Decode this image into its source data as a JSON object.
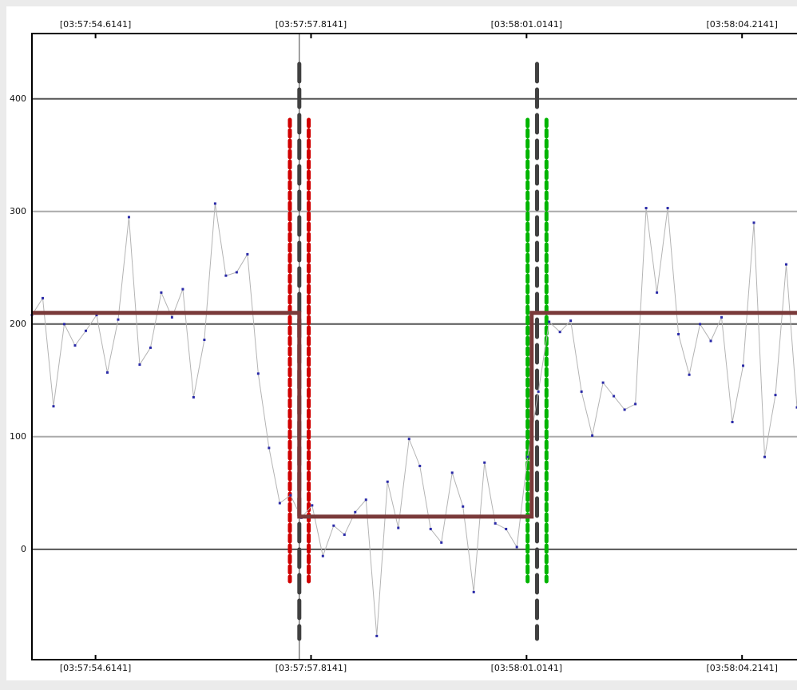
{
  "chart_data": {
    "type": "line",
    "x": [
      14273.67,
      14273.83,
      14273.99,
      14274.15,
      14274.31,
      14274.47,
      14274.63,
      14274.79,
      14274.95,
      14275.11,
      14275.27,
      14275.43,
      14275.59,
      14275.75,
      14275.91,
      14276.07,
      14276.23,
      14276.39,
      14276.55,
      14276.71,
      14276.87,
      14277.03,
      14277.19,
      14277.35,
      14277.51,
      14277.67,
      14277.83,
      14277.99,
      14278.15,
      14278.31,
      14278.47,
      14278.63,
      14278.79,
      14278.95,
      14279.11,
      14279.27,
      14279.43,
      14279.59,
      14279.75,
      14279.91,
      14280.07,
      14280.23,
      14280.39,
      14280.55,
      14280.71,
      14280.87,
      14281.03,
      14281.19,
      14281.35,
      14281.51,
      14281.67,
      14281.83,
      14281.99,
      14282.15,
      14282.31,
      14282.47,
      14282.63,
      14282.79,
      14282.95,
      14283.11,
      14283.27,
      14283.43,
      14283.59,
      14283.75,
      14283.91,
      14284.07,
      14284.23,
      14284.39,
      14284.55,
      14284.71,
      14284.87,
      14285.03
    ],
    "values": [
      208,
      223,
      127,
      200,
      181,
      194,
      208,
      157,
      204,
      295,
      164,
      179,
      228,
      206,
      231,
      135,
      186,
      307,
      243,
      246,
      262,
      156,
      90,
      41,
      48,
      28,
      39,
      -6,
      21,
      13,
      33,
      44,
      -77,
      60,
      19,
      98,
      74,
      18,
      6,
      68,
      38,
      -38,
      77,
      23,
      18,
      2,
      82,
      140,
      202,
      193,
      203,
      140,
      101,
      148,
      136,
      124,
      129,
      303,
      228,
      303,
      191,
      155,
      200,
      185,
      206,
      113,
      163,
      290,
      82,
      137,
      253,
      126
    ],
    "color": "#b4b4b4",
    "marker_color": "#2a2aa8",
    "xlim": [
      14273.67,
      14285.03
    ],
    "xticks": [
      {
        "value": 14274.6141,
        "label": "[03:57:54.6141]"
      },
      {
        "value": 14277.8141,
        "label": "[03:57:57.8141]"
      },
      {
        "value": 14281.0141,
        "label": "[03:58:01.0141]"
      },
      {
        "value": 14284.2141,
        "label": "[03:58:04.2141]"
      }
    ],
    "ylim": [
      -98,
      458
    ],
    "yticks": [
      0,
      100,
      200,
      300,
      400
    ],
    "grid": true,
    "mean_line": {
      "x": [
        14273.67,
        14277.64,
        14277.64,
        14281.09,
        14281.09,
        14285.03
      ],
      "values": [
        210,
        210,
        29,
        29,
        210,
        210
      ],
      "color": "#7a3a3a"
    },
    "cursors": [
      {
        "x": 14277.64,
        "color": "#404040"
      },
      {
        "x": 14281.17,
        "color": "#404040"
      }
    ],
    "bounds": [
      {
        "x": [
          14277.5,
          14277.78
        ],
        "color": "#d00000"
      },
      {
        "x": [
          14281.03,
          14281.31
        ],
        "color": "#00b400"
      }
    ]
  }
}
